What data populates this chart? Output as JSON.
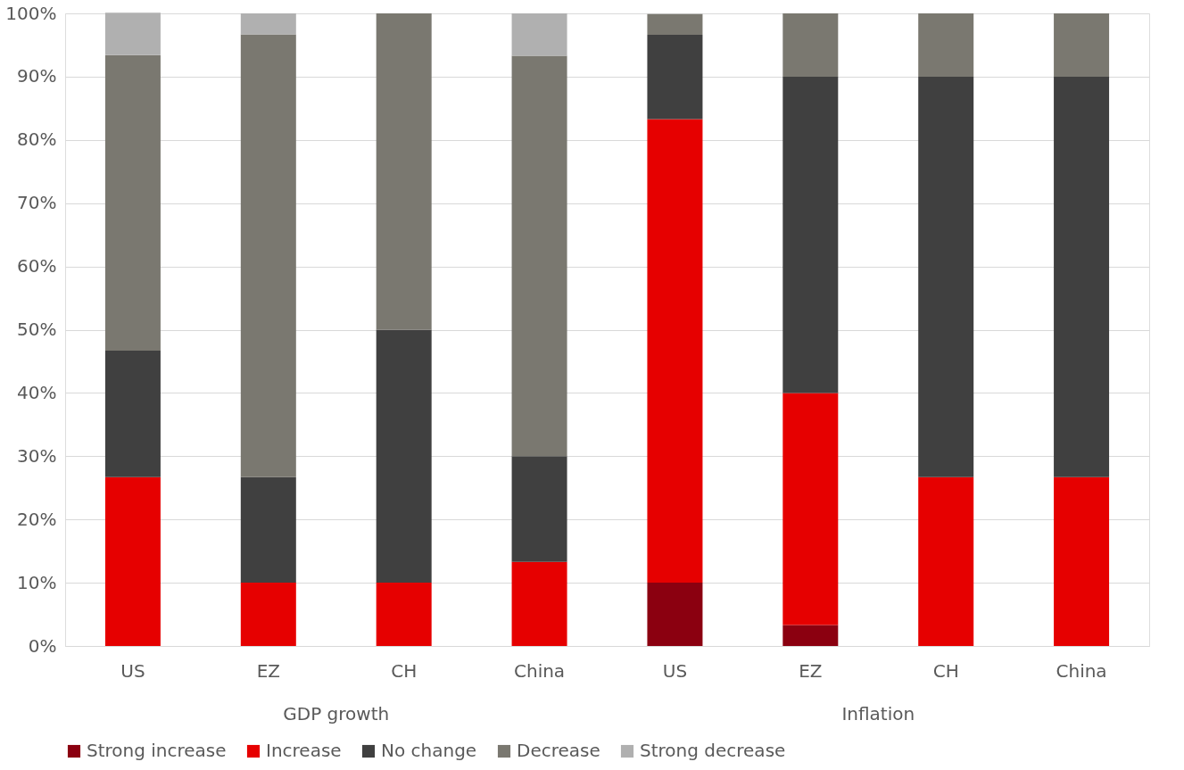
{
  "chart_data": {
    "type": "bar",
    "stacked": true,
    "categories": [
      "US",
      "EZ",
      "CH",
      "China",
      "US",
      "EZ",
      "CH",
      "China"
    ],
    "annotations": [
      "GDP growth",
      "Inflation"
    ],
    "series": [
      {
        "name": "Strong increase",
        "color": "#8b0010",
        "values": [
          0,
          0,
          0,
          0,
          10,
          3.3,
          0,
          0
        ]
      },
      {
        "name": "Increase",
        "color": "#e60000",
        "values": [
          26.7,
          10,
          10,
          13.3,
          73.3,
          36.7,
          26.7,
          26.7
        ]
      },
      {
        "name": "No change",
        "color": "#404040",
        "values": [
          20,
          16.7,
          40,
          16.7,
          13.3,
          50,
          63.3,
          63.3
        ]
      },
      {
        "name": "Decrease",
        "color": "#7a7870",
        "values": [
          46.7,
          70,
          50,
          63.3,
          3.3,
          10,
          10,
          10
        ]
      },
      {
        "name": "Strong decrease",
        "color": "#b0b0b0",
        "values": [
          6.7,
          3.3,
          0,
          6.7,
          0,
          0,
          0,
          0
        ]
      }
    ],
    "ylim": [
      0,
      100
    ],
    "yticks": [
      {
        "value": 0,
        "label": "0%"
      },
      {
        "value": 10,
        "label": "10%"
      },
      {
        "value": 20,
        "label": "20%"
      },
      {
        "value": 30,
        "label": "30%"
      },
      {
        "value": 40,
        "label": "40%"
      },
      {
        "value": 50,
        "label": "50%"
      },
      {
        "value": 60,
        "label": "60%"
      },
      {
        "value": 70,
        "label": "70%"
      },
      {
        "value": 80,
        "label": "80%"
      },
      {
        "value": 90,
        "label": "90%"
      },
      {
        "value": 100,
        "label": "100%"
      }
    ],
    "grid": "y",
    "legend": "bottom"
  }
}
